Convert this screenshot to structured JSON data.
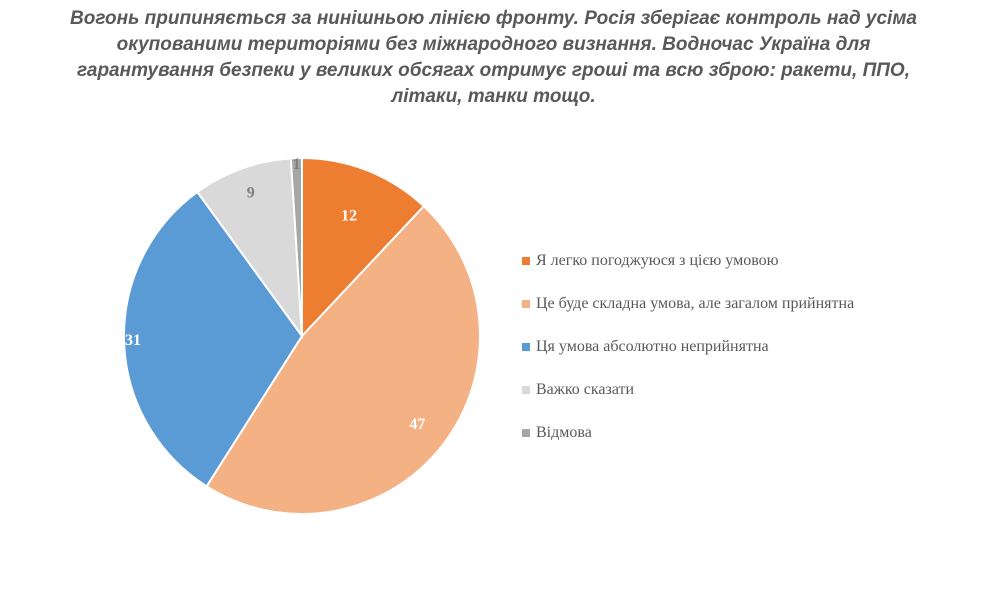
{
  "chart_data": {
    "type": "pie",
    "title_lines": [
      "Вогонь припиняється за нинішньою лінією фронту. Росія зберігає контроль над усіма",
      "окупованими територіями без міжнародного визнання. Водночас Україна для",
      "гарантування безпеки у великих обсягах отримує гроші та всю зброю: ракети, ППО,",
      "літаки, танки тощо."
    ],
    "slices": [
      {
        "name": "Я легко погоджуюся з цією умовою",
        "value": 12,
        "label": "12",
        "color": "#ED7D31",
        "label_color": "#ffffff"
      },
      {
        "name": "Це буде складна умова, але загалом прийнятна",
        "value": 47,
        "label": "47",
        "color": "#F4B183",
        "label_color": "#ffffff"
      },
      {
        "name": "Ця умова абсолютно неприйнятна",
        "value": 31,
        "label": "31",
        "color": "#5B9BD5",
        "label_color": "#ffffff"
      },
      {
        "name": "Важко сказати",
        "value": 9,
        "label": "9",
        "color": "#D9D9D9",
        "label_color": "#7F7F7F"
      },
      {
        "name": "Відмова",
        "value": 1,
        "label": "1",
        "color": "#A6A6A6",
        "label_color": "#7F7F7F"
      }
    ],
    "legend_position": "right"
  }
}
